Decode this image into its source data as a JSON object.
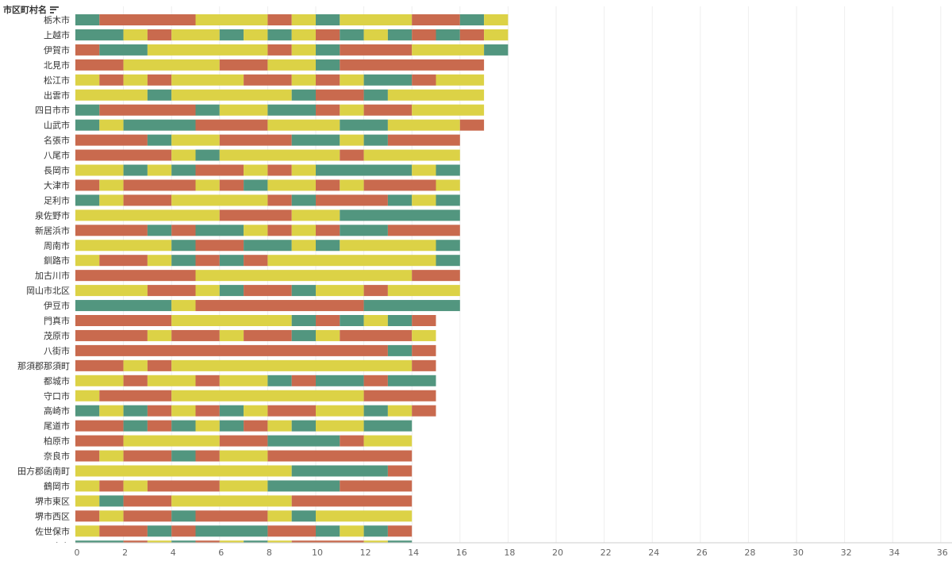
{
  "header": {
    "title": "市区町村名"
  },
  "icons": {
    "sort": "sort-descending-icon"
  },
  "colors": {
    "teal": "#52967f",
    "orange": "#c96a4e",
    "yellow": "#dcd246",
    "grid": "#eeeeee",
    "axis": "#cccccc"
  },
  "chart_data": {
    "type": "bar",
    "orientation": "horizontal",
    "stacked": true,
    "xlim": [
      0,
      36
    ],
    "ticks": [
      0,
      2,
      4,
      6,
      8,
      10,
      12,
      14,
      16,
      18,
      20,
      22,
      24,
      26,
      28,
      30,
      32,
      34,
      36
    ],
    "grid": true,
    "categories": [
      "栃木市",
      "上越市",
      "伊賀市",
      "北見市",
      "松江市",
      "出雲市",
      "四日市市",
      "山武市",
      "名張市",
      "八尾市",
      "長岡市",
      "大津市",
      "足利市",
      "泉佐野市",
      "新居浜市",
      "周南市",
      "釧路市",
      "加古川市",
      "岡山市北区",
      "伊豆市",
      "門真市",
      "茂原市",
      "八街市",
      "那須郡那須町",
      "都城市",
      "守口市",
      "高崎市",
      "尾道市",
      "柏原市",
      "奈良市",
      "田方郡函南町",
      "鶴岡市",
      "堺市東区",
      "堺市西区",
      "佐世保市",
      "甲府市"
    ],
    "segments": [
      [
        [
          "t",
          1
        ],
        [
          "o",
          4
        ],
        [
          "y",
          3
        ],
        [
          "o",
          1
        ],
        [
          "y",
          1
        ],
        [
          "t",
          1
        ],
        [
          "y",
          3
        ],
        [
          "o",
          2
        ],
        [
          "t",
          1
        ],
        [
          "y",
          1
        ]
      ],
      [
        [
          "t",
          2
        ],
        [
          "y",
          1
        ],
        [
          "o",
          1
        ],
        [
          "y",
          2
        ],
        [
          "t",
          1
        ],
        [
          "y",
          1
        ],
        [
          "t",
          1
        ],
        [
          "y",
          1
        ],
        [
          "o",
          1
        ],
        [
          "t",
          1
        ],
        [
          "y",
          1
        ],
        [
          "t",
          1
        ],
        [
          "o",
          1
        ],
        [
          "t",
          1
        ],
        [
          "o",
          1
        ],
        [
          "y",
          1
        ]
      ],
      [
        [
          "o",
          1
        ],
        [
          "t",
          2
        ],
        [
          "y",
          5
        ],
        [
          "o",
          1
        ],
        [
          "y",
          1
        ],
        [
          "t",
          1
        ],
        [
          "o",
          3
        ],
        [
          "y",
          3
        ],
        [
          "t",
          1
        ]
      ],
      [
        [
          "o",
          2
        ],
        [
          "y",
          4
        ],
        [
          "o",
          2
        ],
        [
          "y",
          2
        ],
        [
          "t",
          1
        ],
        [
          "o",
          6
        ]
      ],
      [
        [
          "y",
          1
        ],
        [
          "o",
          1
        ],
        [
          "y",
          1
        ],
        [
          "o",
          1
        ],
        [
          "y",
          3
        ],
        [
          "o",
          2
        ],
        [
          "y",
          1
        ],
        [
          "o",
          1
        ],
        [
          "y",
          1
        ],
        [
          "t",
          2
        ],
        [
          "o",
          1
        ],
        [
          "y",
          2
        ]
      ],
      [
        [
          "y",
          3
        ],
        [
          "t",
          1
        ],
        [
          "y",
          5
        ],
        [
          "t",
          1
        ],
        [
          "o",
          2
        ],
        [
          "t",
          1
        ],
        [
          "y",
          4
        ]
      ],
      [
        [
          "t",
          1
        ],
        [
          "o",
          4
        ],
        [
          "t",
          1
        ],
        [
          "y",
          2
        ],
        [
          "t",
          2
        ],
        [
          "o",
          1
        ],
        [
          "y",
          1
        ],
        [
          "o",
          2
        ],
        [
          "y",
          3
        ]
      ],
      [
        [
          "t",
          1
        ],
        [
          "y",
          1
        ],
        [
          "t",
          3
        ],
        [
          "o",
          3
        ],
        [
          "y",
          3
        ],
        [
          "t",
          2
        ],
        [
          "y",
          3
        ],
        [
          "o",
          1
        ]
      ],
      [
        [
          "o",
          3
        ],
        [
          "t",
          1
        ],
        [
          "y",
          2
        ],
        [
          "o",
          3
        ],
        [
          "t",
          2
        ],
        [
          "y",
          1
        ],
        [
          "t",
          1
        ],
        [
          "o",
          3
        ]
      ],
      [
        [
          "o",
          4
        ],
        [
          "y",
          1
        ],
        [
          "t",
          1
        ],
        [
          "y",
          5
        ],
        [
          "o",
          1
        ],
        [
          "y",
          4
        ]
      ],
      [
        [
          "y",
          2
        ],
        [
          "t",
          1
        ],
        [
          "y",
          1
        ],
        [
          "t",
          1
        ],
        [
          "o",
          2
        ],
        [
          "y",
          1
        ],
        [
          "o",
          1
        ],
        [
          "y",
          1
        ],
        [
          "t",
          4
        ],
        [
          "y",
          1
        ],
        [
          "t",
          1
        ]
      ],
      [
        [
          "o",
          1
        ],
        [
          "y",
          1
        ],
        [
          "o",
          3
        ],
        [
          "y",
          1
        ],
        [
          "o",
          1
        ],
        [
          "t",
          1
        ],
        [
          "y",
          2
        ],
        [
          "o",
          1
        ],
        [
          "y",
          1
        ],
        [
          "o",
          3
        ],
        [
          "y",
          1
        ]
      ],
      [
        [
          "t",
          1
        ],
        [
          "y",
          1
        ],
        [
          "o",
          2
        ],
        [
          "y",
          4
        ],
        [
          "o",
          1
        ],
        [
          "t",
          1
        ],
        [
          "o",
          3
        ],
        [
          "t",
          1
        ],
        [
          "y",
          1
        ],
        [
          "t",
          1
        ]
      ],
      [
        [
          "y",
          6
        ],
        [
          "o",
          3
        ],
        [
          "y",
          2
        ],
        [
          "t",
          5
        ]
      ],
      [
        [
          "o",
          3
        ],
        [
          "t",
          1
        ],
        [
          "o",
          1
        ],
        [
          "t",
          2
        ],
        [
          "y",
          1
        ],
        [
          "o",
          1
        ],
        [
          "y",
          1
        ],
        [
          "o",
          1
        ],
        [
          "t",
          2
        ],
        [
          "o",
          3
        ]
      ],
      [
        [
          "y",
          4
        ],
        [
          "t",
          1
        ],
        [
          "o",
          2
        ],
        [
          "t",
          2
        ],
        [
          "y",
          1
        ],
        [
          "t",
          1
        ],
        [
          "y",
          4
        ],
        [
          "t",
          1
        ]
      ],
      [
        [
          "y",
          1
        ],
        [
          "o",
          2
        ],
        [
          "y",
          1
        ],
        [
          "t",
          1
        ],
        [
          "o",
          1
        ],
        [
          "t",
          1
        ],
        [
          "o",
          1
        ],
        [
          "y",
          7
        ],
        [
          "t",
          1
        ]
      ],
      [
        [
          "o",
          5
        ],
        [
          "y",
          9
        ],
        [
          "o",
          2
        ]
      ],
      [
        [
          "y",
          3
        ],
        [
          "o",
          2
        ],
        [
          "y",
          1
        ],
        [
          "t",
          1
        ],
        [
          "o",
          2
        ],
        [
          "t",
          1
        ],
        [
          "y",
          2
        ],
        [
          "o",
          1
        ],
        [
          "y",
          3
        ]
      ],
      [
        [
          "t",
          4
        ],
        [
          "y",
          1
        ],
        [
          "o",
          7
        ],
        [
          "t",
          4
        ]
      ],
      [
        [
          "o",
          4
        ],
        [
          "y",
          5
        ],
        [
          "t",
          1
        ],
        [
          "o",
          1
        ],
        [
          "t",
          1
        ],
        [
          "y",
          1
        ],
        [
          "t",
          1
        ],
        [
          "o",
          1
        ]
      ],
      [
        [
          "o",
          3
        ],
        [
          "y",
          1
        ],
        [
          "o",
          2
        ],
        [
          "y",
          1
        ],
        [
          "o",
          2
        ],
        [
          "t",
          1
        ],
        [
          "y",
          1
        ],
        [
          "o",
          3
        ],
        [
          "y",
          1
        ]
      ],
      [
        [
          "o",
          13
        ],
        [
          "t",
          1
        ],
        [
          "o",
          1
        ]
      ],
      [
        [
          "o",
          2
        ],
        [
          "y",
          1
        ],
        [
          "o",
          1
        ],
        [
          "y",
          10
        ],
        [
          "o",
          1
        ]
      ],
      [
        [
          "y",
          2
        ],
        [
          "o",
          1
        ],
        [
          "y",
          2
        ],
        [
          "o",
          1
        ],
        [
          "y",
          2
        ],
        [
          "t",
          1
        ],
        [
          "o",
          1
        ],
        [
          "t",
          2
        ],
        [
          "o",
          1
        ],
        [
          "t",
          2
        ]
      ],
      [
        [
          "y",
          1
        ],
        [
          "o",
          3
        ],
        [
          "y",
          8
        ],
        [
          "o",
          3
        ]
      ],
      [
        [
          "t",
          1
        ],
        [
          "y",
          1
        ],
        [
          "t",
          1
        ],
        [
          "o",
          1
        ],
        [
          "y",
          1
        ],
        [
          "o",
          1
        ],
        [
          "t",
          1
        ],
        [
          "y",
          1
        ],
        [
          "o",
          2
        ],
        [
          "y",
          2
        ],
        [
          "t",
          1
        ],
        [
          "y",
          1
        ],
        [
          "o",
          1
        ]
      ],
      [
        [
          "o",
          2
        ],
        [
          "t",
          1
        ],
        [
          "o",
          1
        ],
        [
          "t",
          1
        ],
        [
          "y",
          1
        ],
        [
          "t",
          1
        ],
        [
          "o",
          1
        ],
        [
          "y",
          1
        ],
        [
          "t",
          1
        ],
        [
          "y",
          2
        ],
        [
          "t",
          2
        ]
      ],
      [
        [
          "o",
          2
        ],
        [
          "y",
          4
        ],
        [
          "o",
          2
        ],
        [
          "t",
          3
        ],
        [
          "o",
          1
        ],
        [
          "y",
          2
        ]
      ],
      [
        [
          "o",
          1
        ],
        [
          "y",
          1
        ],
        [
          "o",
          2
        ],
        [
          "t",
          1
        ],
        [
          "o",
          1
        ],
        [
          "y",
          2
        ],
        [
          "o",
          6
        ]
      ],
      [
        [
          "y",
          9
        ],
        [
          "t",
          4
        ],
        [
          "o",
          1
        ]
      ],
      [
        [
          "y",
          1
        ],
        [
          "o",
          1
        ],
        [
          "y",
          1
        ],
        [
          "o",
          3
        ],
        [
          "y",
          2
        ],
        [
          "t",
          3
        ],
        [
          "o",
          3
        ]
      ],
      [
        [
          "y",
          1
        ],
        [
          "t",
          1
        ],
        [
          "o",
          2
        ],
        [
          "y",
          5
        ],
        [
          "o",
          5
        ]
      ],
      [
        [
          "o",
          1
        ],
        [
          "y",
          1
        ],
        [
          "o",
          2
        ],
        [
          "t",
          1
        ],
        [
          "o",
          3
        ],
        [
          "y",
          1
        ],
        [
          "t",
          1
        ],
        [
          "y",
          4
        ]
      ],
      [
        [
          "y",
          1
        ],
        [
          "o",
          2
        ],
        [
          "t",
          1
        ],
        [
          "o",
          1
        ],
        [
          "t",
          3
        ],
        [
          "o",
          2
        ],
        [
          "t",
          1
        ],
        [
          "y",
          1
        ],
        [
          "t",
          1
        ],
        [
          "o",
          1
        ]
      ],
      [
        [
          "t",
          2
        ],
        [
          "o",
          1
        ],
        [
          "y",
          1
        ],
        [
          "t",
          1
        ],
        [
          "o",
          1
        ],
        [
          "y",
          1
        ],
        [
          "t",
          1
        ],
        [
          "y",
          1
        ],
        [
          "o",
          3
        ],
        [
          "y",
          1
        ],
        [
          "t",
          1
        ]
      ]
    ]
  }
}
